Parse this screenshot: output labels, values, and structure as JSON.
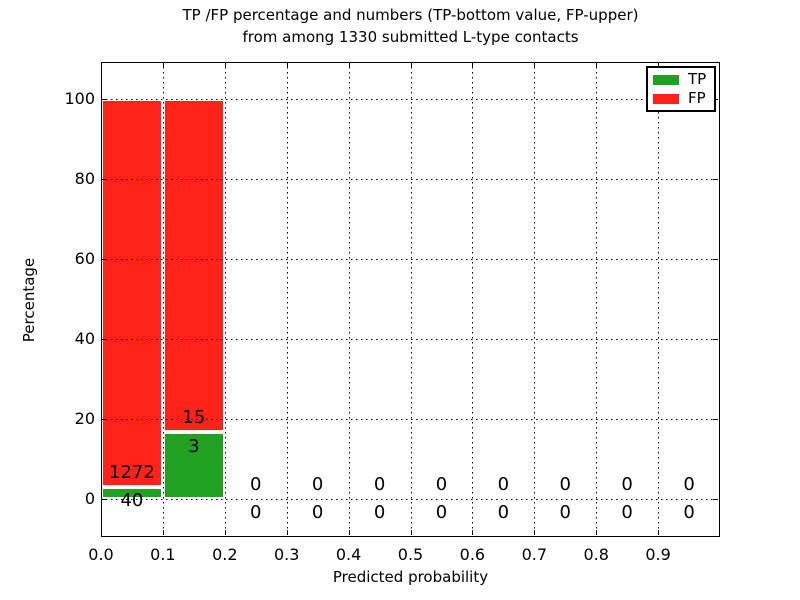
{
  "title": {
    "line1": "TP /FP percentage and numbers (TP-bottom value, FP-upper)",
    "line2": "from among 1330 submitted L-type contacts"
  },
  "chart_data": {
    "type": "bar",
    "stacked": true,
    "title": "TP /FP percentage and numbers (TP-bottom value, FP-upper)\nfrom among 1330 submitted L-type contacts",
    "xlabel": "Predicted probability",
    "ylabel": "Percentage",
    "xlim": [
      0.0,
      1.0
    ],
    "ylim": [
      -10,
      110
    ],
    "x_tick_labels": [
      "0.0",
      "0.1",
      "0.2",
      "0.3",
      "0.4",
      "0.5",
      "0.6",
      "0.7",
      "0.8",
      "0.9"
    ],
    "y_ticks": [
      0,
      20,
      40,
      60,
      80,
      100
    ],
    "grid": "dotted black, both axes",
    "total_contacts": 1330,
    "bin_width": 0.1,
    "bins": [
      {
        "x_start": 0.0,
        "x_end": 0.1,
        "tp_count": 40,
        "fp_count": 1272,
        "tp_pct": 3.05,
        "fp_pct": 96.95
      },
      {
        "x_start": 0.1,
        "x_end": 0.2,
        "tp_count": 3,
        "fp_count": 15,
        "tp_pct": 16.67,
        "fp_pct": 83.33
      },
      {
        "x_start": 0.2,
        "x_end": 0.3,
        "tp_count": 0,
        "fp_count": 0,
        "tp_pct": 0,
        "fp_pct": 0
      },
      {
        "x_start": 0.3,
        "x_end": 0.4,
        "tp_count": 0,
        "fp_count": 0,
        "tp_pct": 0,
        "fp_pct": 0
      },
      {
        "x_start": 0.4,
        "x_end": 0.5,
        "tp_count": 0,
        "fp_count": 0,
        "tp_pct": 0,
        "fp_pct": 0
      },
      {
        "x_start": 0.5,
        "x_end": 0.6,
        "tp_count": 0,
        "fp_count": 0,
        "tp_pct": 0,
        "fp_pct": 0
      },
      {
        "x_start": 0.6,
        "x_end": 0.7,
        "tp_count": 0,
        "fp_count": 0,
        "tp_pct": 0,
        "fp_pct": 0
      },
      {
        "x_start": 0.7,
        "x_end": 0.8,
        "tp_count": 0,
        "fp_count": 0,
        "tp_pct": 0,
        "fp_pct": 0
      },
      {
        "x_start": 0.8,
        "x_end": 0.9,
        "tp_count": 0,
        "fp_count": 0,
        "tp_pct": 0,
        "fp_pct": 0
      },
      {
        "x_start": 0.9,
        "x_end": 1.0,
        "tp_count": 0,
        "fp_count": 0,
        "tp_pct": 0,
        "fp_pct": 0
      }
    ],
    "legend": {
      "position": "upper right",
      "entries": [
        {
          "label": "TP",
          "color": "#22a022"
        },
        {
          "label": "FP",
          "color": "#ff2218"
        }
      ]
    },
    "colors": {
      "tp": "#22a022",
      "fp": "#ff2218",
      "grid": "#000000",
      "background": "#ffffff",
      "bar_edge": "#ffffff"
    }
  }
}
